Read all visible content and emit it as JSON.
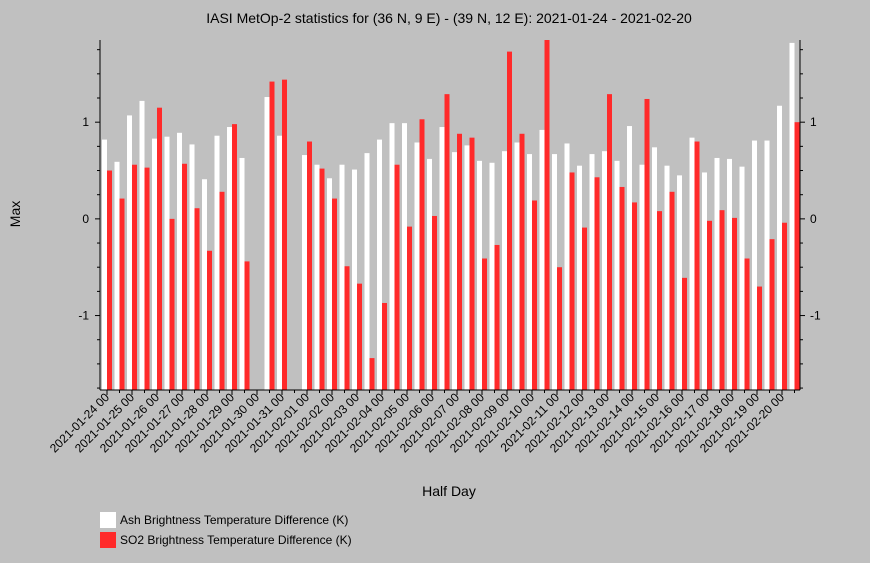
{
  "chart_data": {
    "type": "bar",
    "title": "IASI MetOp-2 statistics for (36 N, 9 E) - (39 N, 12 E): 2021-01-24 - 2021-02-20",
    "xlabel": "Half Day",
    "ylabel": "Max",
    "ylim": [
      -1.77,
      1.85
    ],
    "yticks": [
      -1,
      0,
      1
    ],
    "x_tick_labels": [
      "2021-01-24 00",
      "2021-01-25 00",
      "2021-01-26 00",
      "2021-01-27 00",
      "2021-01-28 00",
      "2021-01-29 00",
      "2021-01-30 00",
      "2021-01-31 00",
      "2021-02-01 00",
      "2021-02-02 00",
      "2021-02-03 00",
      "2021-02-04 00",
      "2021-02-05 00",
      "2021-02-06 00",
      "2021-02-07 00",
      "2021-02-08 00",
      "2021-02-09 00",
      "2021-02-10 00",
      "2021-02-11 00",
      "2021-02-12 00",
      "2021-02-13 00",
      "2021-02-14 00",
      "2021-02-15 00",
      "2021-02-16 00",
      "2021-02-17 00",
      "2021-02-18 00",
      "2021-02-19 00",
      "2021-02-20 00"
    ],
    "legend_placement": "bottom-left",
    "series": [
      {
        "name": "Ash Brightness Temperature Difference (K)",
        "color": "#ffffff",
        "values": [
          0.82,
          0.59,
          1.07,
          1.22,
          0.83,
          0.85,
          0.89,
          0.77,
          0.41,
          0.86,
          0.95,
          0.63,
          null,
          1.26,
          0.86,
          null,
          0.66,
          0.56,
          0.42,
          0.56,
          0.51,
          0.68,
          0.82,
          0.99,
          0.99,
          0.79,
          0.62,
          0.95,
          0.69,
          0.76,
          0.6,
          0.58,
          0.7,
          0.79,
          0.67,
          0.92,
          0.67,
          0.78,
          0.55,
          0.67,
          0.7,
          0.6,
          0.96,
          0.56,
          0.74,
          0.55,
          0.45,
          0.84,
          0.48,
          0.63,
          0.62,
          0.54,
          0.81,
          0.81,
          1.17,
          1.82
        ]
      },
      {
        "name": "SO2 Brightness Temperature Difference (K)",
        "color": "#ff2a2a",
        "values": [
          0.5,
          0.21,
          0.56,
          0.53,
          1.15,
          0.0,
          0.57,
          0.11,
          -0.33,
          0.28,
          0.98,
          -0.44,
          null,
          1.42,
          1.44,
          null,
          0.8,
          0.52,
          0.21,
          -0.49,
          -0.67,
          -1.44,
          -0.87,
          0.56,
          -0.08,
          1.03,
          0.03,
          1.29,
          0.88,
          0.84,
          -0.41,
          -0.27,
          1.73,
          0.88,
          0.19,
          1.87,
          -0.5,
          0.48,
          -0.09,
          0.43,
          1.29,
          0.33,
          0.17,
          1.24,
          0.08,
          0.28,
          -0.61,
          0.8,
          -0.02,
          0.09,
          0.01,
          -0.41,
          -0.7,
          -0.21,
          -0.04,
          1.0
        ]
      }
    ]
  }
}
